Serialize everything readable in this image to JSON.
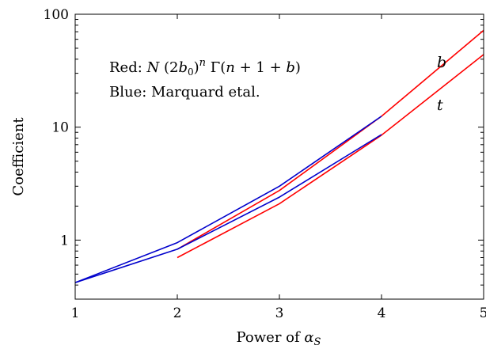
{
  "chart_data": {
    "type": "line",
    "xlabel": "Power of αS",
    "ylabel": "Coefficient",
    "xlim": [
      1,
      5
    ],
    "ylim": [
      0.3,
      100
    ],
    "y_scale": "log",
    "grid": false,
    "x_ticks": [
      1,
      2,
      3,
      4,
      5
    ],
    "x_tick_labels": [
      "1",
      "2",
      "3",
      "4",
      "5"
    ],
    "y_ticks": [
      1,
      10,
      100
    ],
    "y_tick_labels": [
      "1",
      "10",
      "100"
    ],
    "annotations": [
      "Red: N (2b0)^n Γ(n + 1 + b)",
      "Blue: Marquard etal."
    ],
    "curve_labels": [
      "b",
      "t"
    ],
    "series": [
      {
        "label": "b",
        "color": "#ff0000",
        "x": [
          2,
          3,
          4,
          5
        ],
        "y": [
          0.83,
          2.75,
          12.5,
          72
        ]
      },
      {
        "label": "t",
        "color": "#ff0000",
        "x": [
          2,
          3,
          4,
          5
        ],
        "y": [
          0.7,
          2.1,
          8.5,
          44
        ]
      },
      {
        "label": "b",
        "color": "#0000cc",
        "x": [
          1,
          2,
          3,
          4
        ],
        "y": [
          0.42,
          0.95,
          3.0,
          12.5
        ]
      },
      {
        "label": "t",
        "color": "#0000cc",
        "x": [
          1,
          2,
          3,
          4
        ],
        "y": [
          0.42,
          0.83,
          2.4,
          8.6
        ]
      }
    ]
  }
}
